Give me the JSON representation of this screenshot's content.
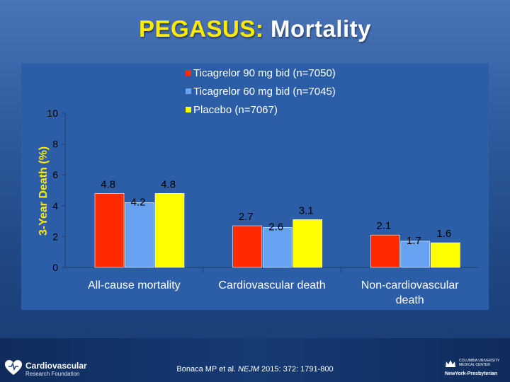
{
  "title": {
    "part1": "PEGASUS:",
    "part2": " Mortality"
  },
  "chart_data": {
    "type": "bar",
    "title": "PEGASUS: Mortality",
    "xlabel": "",
    "ylabel": "3-Year Death (%)",
    "ylim": [
      0,
      10
    ],
    "yticks": [
      0,
      2,
      4,
      6,
      8,
      10
    ],
    "categories": [
      "All-cause mortality",
      "Cardiovascular death",
      "Non-cardiovascular death"
    ],
    "series": [
      {
        "name": "Ticagrelor 90 mg bid (n=7050)",
        "color": "#ff2a00",
        "values": [
          4.8,
          2.7,
          2.1
        ]
      },
      {
        "name": "Ticagrelor 60 mg bid (n=7045)",
        "color": "#66a1f2",
        "values": [
          4.2,
          2.6,
          1.7
        ]
      },
      {
        "name": "Placebo (n=7067)",
        "color": "#ffff00",
        "values": [
          4.8,
          3.1,
          1.6
        ]
      }
    ],
    "legend_position": "top-right",
    "grid": false
  },
  "citation": {
    "pre": "Bonaca MP et al. ",
    "journal": "NEJM",
    "post": " 2015: 372: 1791-800"
  },
  "logos": {
    "left_line1": "Cardiovascular",
    "left_line2": "Research Foundation",
    "right_line1": "COLUMBIA UNIVERSITY",
    "right_line2": "MEDICAL CENTER",
    "right_line3": "NewYork-Presbyterian"
  }
}
